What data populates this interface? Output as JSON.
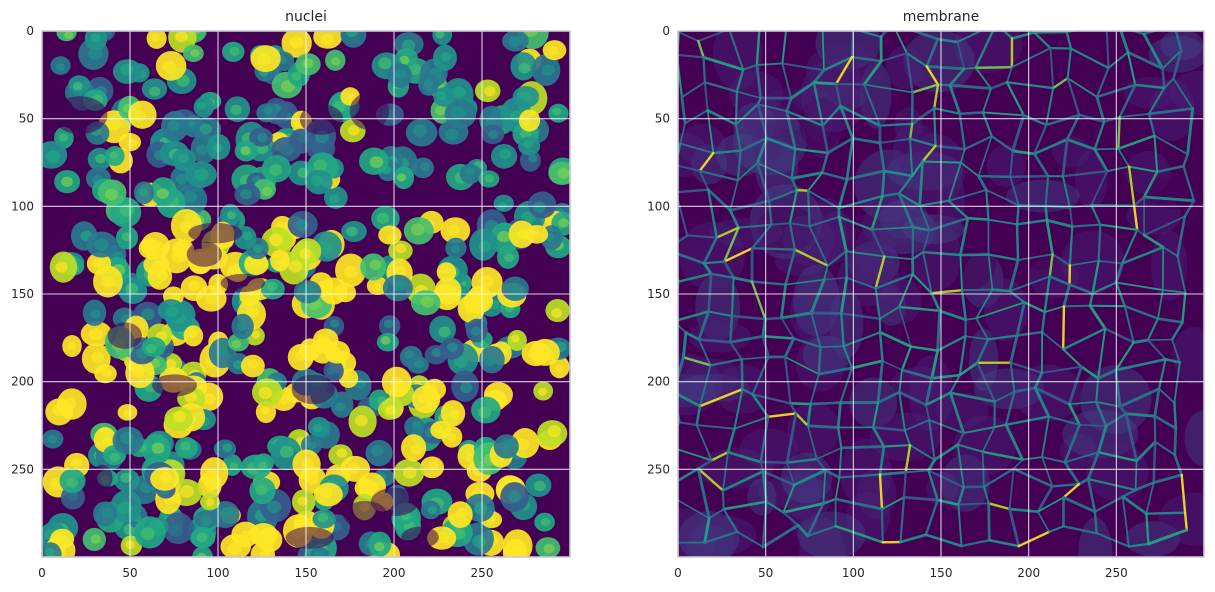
{
  "chart_data": [
    {
      "type": "heatmap",
      "title": "nuclei",
      "colormap": "viridis",
      "xlim": [
        0,
        300
      ],
      "ylim": [
        300,
        0
      ],
      "x_ticks": [
        0,
        50,
        100,
        150,
        200,
        250
      ],
      "y_ticks": [
        0,
        50,
        100,
        150,
        200,
        250
      ],
      "grid": true,
      "grid_color": "#ffffff",
      "frame_color": "#c8c8d0",
      "texture": "blobs",
      "regions": [
        {
          "name": "upper",
          "y": [
            0,
            110
          ],
          "blob_density": 0.8,
          "bright_fraction": 0.12
        },
        {
          "name": "middle",
          "y": [
            110,
            220
          ],
          "blob_density": 1.0,
          "bright_fraction": 0.55
        },
        {
          "name": "lower",
          "y": [
            220,
            300
          ],
          "blob_density": 1.0,
          "bright_fraction": 0.45
        }
      ]
    },
    {
      "type": "heatmap",
      "title": "membrane",
      "colormap": "viridis",
      "xlim": [
        0,
        300
      ],
      "ylim": [
        300,
        0
      ],
      "x_ticks": [
        0,
        50,
        100,
        150,
        200,
        250
      ],
      "y_ticks": [
        0,
        50,
        100,
        150,
        200,
        250
      ],
      "grid": true,
      "grid_color": "#ffffff",
      "frame_color": "#c8c8d0",
      "texture": "network",
      "regions": [
        {
          "name": "whole",
          "y": [
            0,
            300
          ],
          "edge_intensity": 0.45,
          "bright_fraction": 0.05
        }
      ]
    }
  ]
}
